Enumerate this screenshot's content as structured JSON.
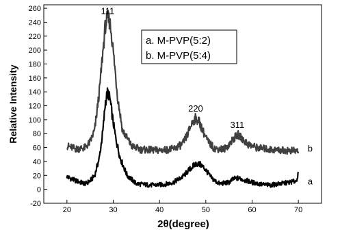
{
  "chart_data": {
    "type": "line",
    "xlabel": "2θ(degree)",
    "ylabel": "Relative Intensity",
    "xlim": [
      15,
      75
    ],
    "ylim": [
      -20,
      265
    ],
    "xticks": [
      20,
      30,
      40,
      50,
      60,
      70
    ],
    "yticks": [
      -20,
      0,
      20,
      40,
      60,
      80,
      100,
      120,
      140,
      160,
      180,
      200,
      220,
      240,
      260
    ],
    "legend": {
      "placement": "top-center",
      "entries": [
        "a. M-PVP(5:2)",
        "b. M-PVP(5:4)"
      ]
    },
    "peak_annotations": [
      {
        "text": "111",
        "x": 28.8,
        "y": 246
      },
      {
        "text": "220",
        "x": 47.8,
        "y": 106
      },
      {
        "text": "311",
        "x": 56.8,
        "y": 82
      }
    ],
    "series": [
      {
        "name": "a",
        "color": "#000000",
        "label_x": 72,
        "label_y": 11,
        "x": [
          20,
          22,
          24,
          25,
          26,
          27,
          27.8,
          28.3,
          28.8,
          29.3,
          29.8,
          30.5,
          31.5,
          33,
          35,
          38,
          41,
          43,
          45,
          46,
          47,
          48,
          49,
          50,
          51,
          52,
          53,
          55,
          56,
          57,
          58,
          60,
          62,
          64,
          66,
          68,
          69.5,
          70
        ],
        "y": [
          18,
          12,
          8,
          12,
          20,
          45,
          85,
          125,
          140,
          130,
          105,
          75,
          45,
          20,
          8,
          6,
          7,
          10,
          18,
          25,
          32,
          37,
          35,
          28,
          18,
          12,
          8,
          10,
          15,
          16,
          14,
          10,
          7,
          6,
          8,
          10,
          12,
          22
        ]
      },
      {
        "name": "b",
        "color": "#404040",
        "label_x": 72,
        "label_y": 58,
        "x": [
          20,
          22,
          24,
          25,
          26,
          27,
          27.8,
          28.3,
          28.8,
          29.2,
          29.6,
          30.2,
          31,
          32,
          34,
          36,
          40,
          43,
          45,
          46,
          47,
          47.8,
          48.5,
          49.5,
          50.5,
          52,
          54,
          55,
          56,
          57,
          58,
          59,
          61,
          64,
          67,
          70
        ],
        "y": [
          62,
          58,
          60,
          68,
          85,
          140,
          200,
          235,
          246,
          242,
          225,
          185,
          130,
          85,
          62,
          57,
          56,
          58,
          65,
          78,
          95,
          102,
          98,
          82,
          68,
          58,
          58,
          64,
          73,
          78,
          72,
          65,
          60,
          57,
          56,
          55
        ]
      }
    ]
  }
}
